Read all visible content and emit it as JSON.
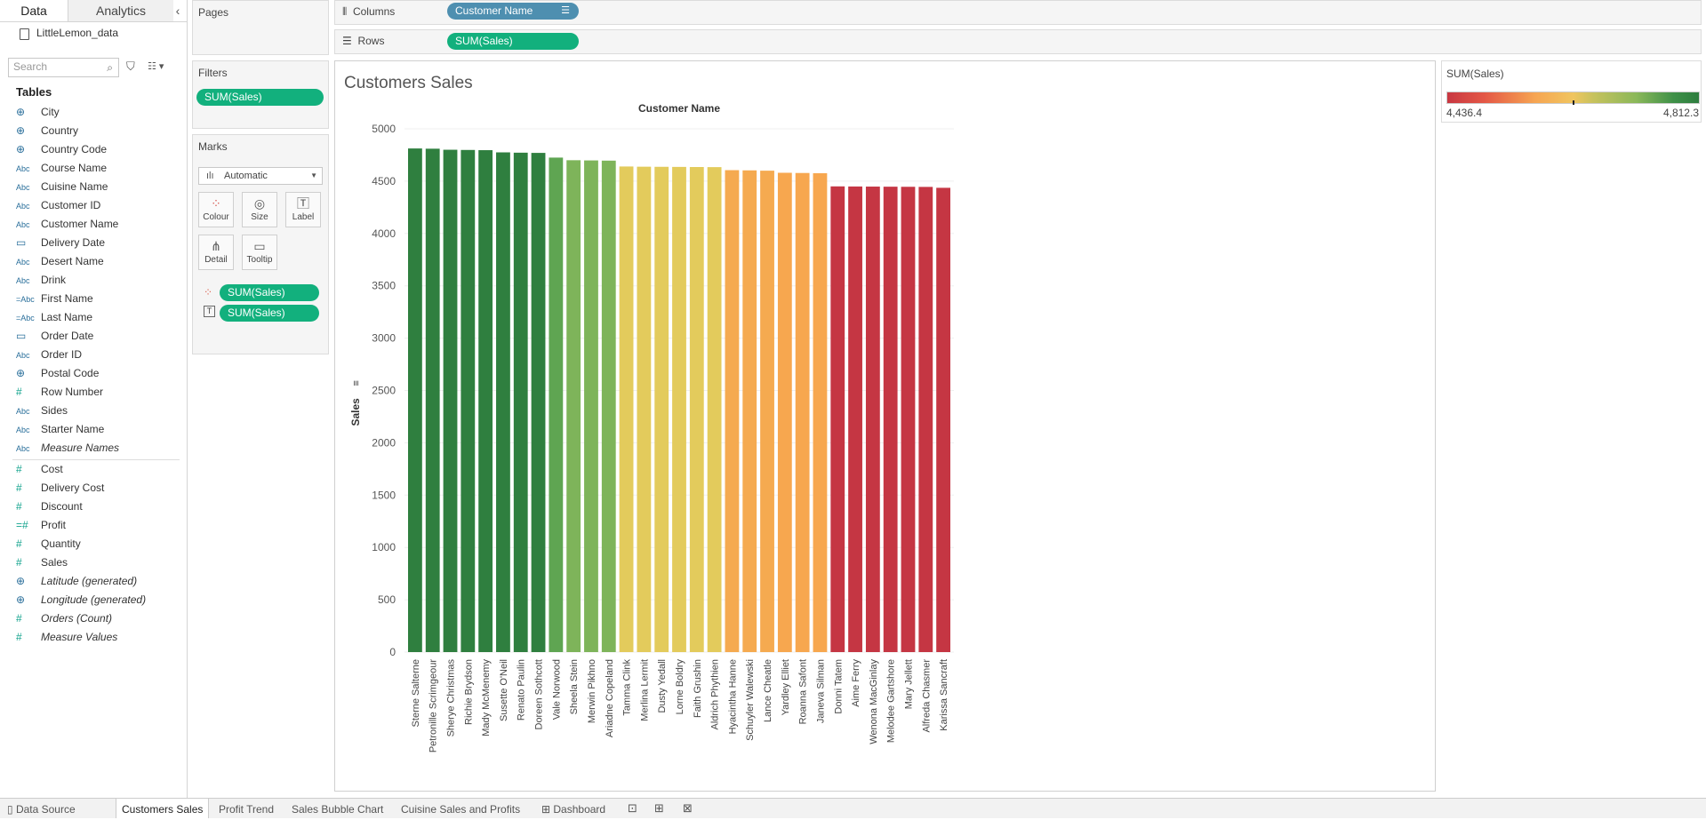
{
  "left_pane": {
    "tabs": [
      "Data",
      "Analytics"
    ],
    "datasource": "LittleLemon_data",
    "search_placeholder": "Search",
    "tables_heading": "Tables",
    "dimensions": [
      {
        "icon": "globe",
        "label": "City"
      },
      {
        "icon": "globe",
        "label": "Country"
      },
      {
        "icon": "globe",
        "label": "Country Code"
      },
      {
        "icon": "abc",
        "label": "Course Name"
      },
      {
        "icon": "abc",
        "label": "Cuisine Name"
      },
      {
        "icon": "abc",
        "label": "Customer ID"
      },
      {
        "icon": "abc",
        "label": "Customer Name"
      },
      {
        "icon": "calendar",
        "label": "Delivery Date"
      },
      {
        "icon": "abc",
        "label": "Desert Name"
      },
      {
        "icon": "abc",
        "label": "Drink"
      },
      {
        "icon": "abc-calc",
        "label": "First Name"
      },
      {
        "icon": "abc-calc",
        "label": "Last Name"
      },
      {
        "icon": "calendar",
        "label": "Order Date"
      },
      {
        "icon": "abc",
        "label": "Order ID"
      },
      {
        "icon": "globe",
        "label": "Postal Code"
      },
      {
        "icon": "hash",
        "label": "Row Number"
      },
      {
        "icon": "abc",
        "label": "Sides"
      },
      {
        "icon": "abc",
        "label": "Starter Name"
      },
      {
        "icon": "abc",
        "label": "Measure Names",
        "italic": true
      }
    ],
    "measures": [
      {
        "icon": "hash",
        "label": "Cost"
      },
      {
        "icon": "hash",
        "label": "Delivery Cost"
      },
      {
        "icon": "hash",
        "label": "Discount"
      },
      {
        "icon": "hash-calc",
        "label": "Profit"
      },
      {
        "icon": "hash",
        "label": "Quantity"
      },
      {
        "icon": "hash",
        "label": "Sales"
      },
      {
        "icon": "globe",
        "label": "Latitude (generated)",
        "italic": true
      },
      {
        "icon": "globe",
        "label": "Longitude (generated)",
        "italic": true
      },
      {
        "icon": "hash",
        "label": "Orders (Count)",
        "italic": true
      },
      {
        "icon": "hash",
        "label": "Measure Values",
        "italic": true
      }
    ]
  },
  "shelves": {
    "pages_title": "Pages",
    "filters_title": "Filters",
    "filter_pill": "SUM(Sales)",
    "columns_label": "Columns",
    "columns_pill": "Customer Name",
    "rows_label": "Rows",
    "rows_pill": "SUM(Sales)"
  },
  "marks": {
    "title": "Marks",
    "type": "Automatic",
    "buttons": [
      "Colour",
      "Size",
      "Label",
      "Detail",
      "Tooltip"
    ],
    "colour_pill": "SUM(Sales)",
    "label_pill": "SUM(Sales)"
  },
  "legend": {
    "title": "SUM(Sales)",
    "min": "4,436.4",
    "max": "4,812.3"
  },
  "sheet_title": "Customers Sales",
  "chart_data": {
    "type": "bar",
    "title": "Customer Name",
    "xlabel": "Customer Name",
    "ylabel": "Sales",
    "ylim": [
      0,
      5000
    ],
    "yticks": [
      0,
      500,
      1000,
      1500,
      2000,
      2500,
      3000,
      3500,
      4000,
      4500,
      5000
    ],
    "categories": [
      "Sterne Salterne",
      "Petronille Scrimgeour",
      "Sherye Christmas",
      "Richie Brydson",
      "Mady McMenemy",
      "Susette O'Neil",
      "Renato Paulin",
      "Doreen Sothcott",
      "Vale Norwood",
      "Sheela Stein",
      "Merwin Pikhno",
      "Ariadne Copeland",
      "Tamma Clink",
      "Merlina Lermit",
      "Dusty Yedall",
      "Lorne Boldry",
      "Faith Grushin",
      "Aldrich Phythien",
      "Hyacintha Hanne",
      "Schuyler Walewski",
      "Lance Cheatle",
      "Yardley Elliet",
      "Roanna Safont",
      "Janeva Silman",
      "Donni Tatem",
      "Aime Ferry",
      "Wenona MacGinlay",
      "Melodee Gartshore",
      "Mary Jellett",
      "Alfreda Chasmer",
      "Karissa Sancraft"
    ],
    "values": [
      4812.3,
      4810,
      4800,
      4798,
      4796,
      4775,
      4772,
      4770,
      4725,
      4700,
      4698,
      4696,
      4640,
      4638,
      4637,
      4636,
      4635,
      4634,
      4605,
      4603,
      4600,
      4580,
      4578,
      4576,
      4450,
      4449,
      4448,
      4447,
      4446,
      4445,
      4436.4
    ],
    "colors": [
      "#2f7f3f",
      "#2f7f3f",
      "#2f7f3f",
      "#2f7f3f",
      "#2f7f3f",
      "#2f7f3f",
      "#2f7f3f",
      "#2f7f3f",
      "#5fa552",
      "#7eb45a",
      "#7eb45a",
      "#7eb45a",
      "#e3cb5c",
      "#e3cb5c",
      "#e3cb5c",
      "#e3cb5c",
      "#e3cb5c",
      "#e3cb5c",
      "#f5aa50",
      "#f5aa50",
      "#f5aa50",
      "#f7a74f",
      "#f7a74f",
      "#f7a74f",
      "#c53643",
      "#c53643",
      "#c53643",
      "#c53643",
      "#c53643",
      "#c53643",
      "#c53643"
    ]
  },
  "bottom_tabs": [
    "Data Source",
    "Customers Sales",
    "Profit Trend",
    "Sales Bubble Chart",
    "Cuisine Sales and Profits",
    "Dashboard"
  ]
}
